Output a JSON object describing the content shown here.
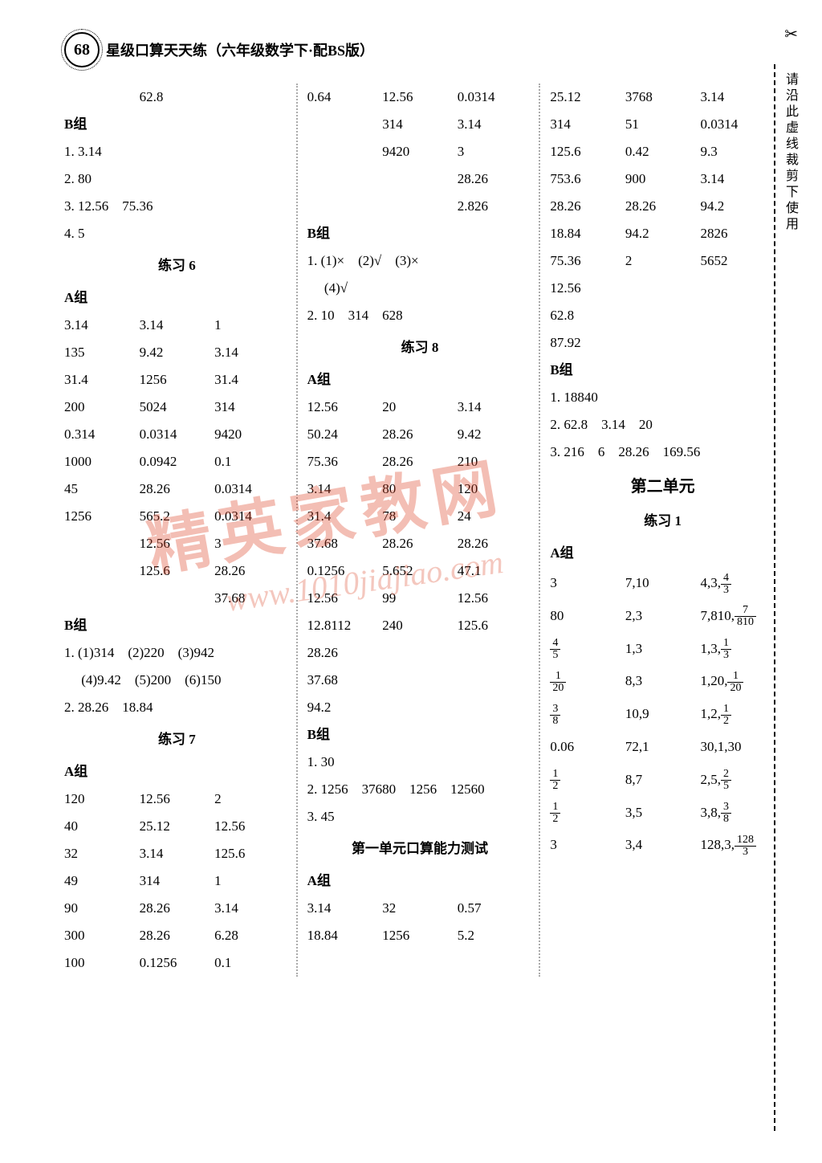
{
  "page_number": "68",
  "header_title": "星级口算天天练（六年级数学下·配BS版）",
  "side_note": "请沿此虚线裁剪下使用",
  "watermark": "精英家教网",
  "watermark_url": "www.1010jiajiao.com",
  "col1": {
    "top_val": "62.8",
    "b_label": "B组",
    "items": [
      "1. 3.14",
      "2. 80",
      "3. 12.56　75.36",
      "4. 5"
    ],
    "ex6_title": "练习 6",
    "a_label": "A组",
    "ex6_rows": [
      [
        "3.14",
        "3.14",
        "1"
      ],
      [
        "135",
        "9.42",
        "3.14"
      ],
      [
        "31.4",
        "1256",
        "31.4"
      ],
      [
        "200",
        "5024",
        "314"
      ],
      [
        "0.314",
        "0.0314",
        "9420"
      ],
      [
        "1000",
        "0.0942",
        "0.1"
      ],
      [
        "45",
        "28.26",
        "0.0314"
      ],
      [
        "1256",
        "565.2",
        "0.0314"
      ],
      [
        "",
        "12.56",
        "3"
      ],
      [
        "",
        "125.6",
        "28.26"
      ],
      [
        "",
        "",
        "37.68"
      ]
    ],
    "b_label2": "B组",
    "b_items": [
      "1. (1)314　(2)220　(3)942",
      "　 (4)9.42　(5)200　(6)150",
      "2. 28.26　18.84"
    ],
    "ex7_title": "练习 7",
    "a_label2": "A组",
    "ex7_rows": [
      [
        "120",
        "12.56",
        "2"
      ],
      [
        "40",
        "25.12",
        "12.56"
      ],
      [
        "32",
        "3.14",
        "125.6"
      ],
      [
        "49",
        "314",
        "1"
      ],
      [
        "90",
        "28.26",
        "3.14"
      ],
      [
        "300",
        "28.26",
        "6.28"
      ],
      [
        "100",
        "0.1256",
        "0.1"
      ]
    ]
  },
  "col2": {
    "top_rows": [
      [
        "0.64",
        "12.56",
        "0.0314"
      ],
      [
        "",
        "314",
        "3.14"
      ],
      [
        "",
        "9420",
        "3"
      ],
      [
        "",
        "",
        "28.26"
      ],
      [
        "",
        "",
        "2.826"
      ]
    ],
    "b_label": "B组",
    "b_items": [
      "1. (1)×　(2)√　(3)×",
      "　 (4)√",
      "2. 10　314　628"
    ],
    "ex8_title": "练习 8",
    "a_label": "A组",
    "ex8_rows": [
      [
        "12.56",
        "20",
        "3.14"
      ],
      [
        "50.24",
        "28.26",
        "9.42"
      ],
      [
        "75.36",
        "28.26",
        "210"
      ],
      [
        "3.14",
        "80",
        "120"
      ],
      [
        "31.4",
        "78",
        "24"
      ],
      [
        "37.68",
        "28.26",
        "28.26"
      ],
      [
        "0.1256",
        "5.652",
        "47.1"
      ],
      [
        "12.56",
        "99",
        "12.56"
      ],
      [
        "12.8112",
        "240",
        "125.6"
      ],
      [
        "28.26",
        "",
        ""
      ],
      [
        "37.68",
        "",
        ""
      ],
      [
        "94.2",
        "",
        ""
      ]
    ],
    "b_label2": "B组",
    "b_items2": [
      "1. 30",
      "2. 1256　37680　1256　12560",
      "3. 45"
    ],
    "test_title": "第一单元口算能力测试",
    "a_label2": "A组",
    "test_rows": [
      [
        "3.14",
        "32",
        "0.57"
      ],
      [
        "18.84",
        "1256",
        "5.2"
      ]
    ]
  },
  "col3": {
    "top_rows": [
      [
        "25.12",
        "3768",
        "3.14"
      ],
      [
        "314",
        "51",
        "0.0314"
      ],
      [
        "125.6",
        "0.42",
        "9.3"
      ],
      [
        "753.6",
        "900",
        "3.14"
      ],
      [
        "28.26",
        "28.26",
        "94.2"
      ],
      [
        "18.84",
        "94.2",
        "2826"
      ],
      [
        "75.36",
        "2",
        "5652"
      ],
      [
        "12.56",
        "",
        ""
      ],
      [
        "62.8",
        "",
        ""
      ],
      [
        "87.92",
        "",
        ""
      ]
    ],
    "b_label": "B组",
    "b_items": [
      "1. 18840",
      "2. 62.8　3.14　20",
      "3. 216　6　28.26　169.56"
    ],
    "unit2_title": "第二单元",
    "ex1_title": "练习 1",
    "a_label": "A组",
    "ex1_rows": [
      {
        "c1": "3",
        "c2": "7,10",
        "c3": [
          "4,3,",
          [
            "4",
            "3"
          ]
        ]
      },
      {
        "c1": "80",
        "c2": "2,3",
        "c3": [
          "7,810,",
          [
            "7",
            "810"
          ]
        ]
      },
      {
        "c1": [
          "4",
          "5"
        ],
        "c2": "1,3",
        "c3": [
          "1,3,",
          [
            "1",
            "3"
          ]
        ]
      },
      {
        "c1": [
          "1",
          "20"
        ],
        "c2": "8,3",
        "c3": [
          "1,20,",
          [
            "1",
            "20"
          ]
        ]
      },
      {
        "c1": [
          "3",
          "8"
        ],
        "c2": "10,9",
        "c3": [
          "1,2,",
          [
            "1",
            "2"
          ]
        ]
      },
      {
        "c1": "0.06",
        "c2": "72,1",
        "c3": [
          "30,1,30"
        ]
      },
      {
        "c1": [
          "1",
          "2"
        ],
        "c2": "8,7",
        "c3": [
          "2,5,",
          [
            "2",
            "5"
          ]
        ]
      },
      {
        "c1": [
          "1",
          "2"
        ],
        "c2": "3,5",
        "c3": [
          "3,8,",
          [
            "3",
            "8"
          ]
        ]
      },
      {
        "c1": "3",
        "c2": "3,4",
        "c3": [
          "128,3,",
          [
            "128",
            "3"
          ]
        ]
      }
    ]
  }
}
